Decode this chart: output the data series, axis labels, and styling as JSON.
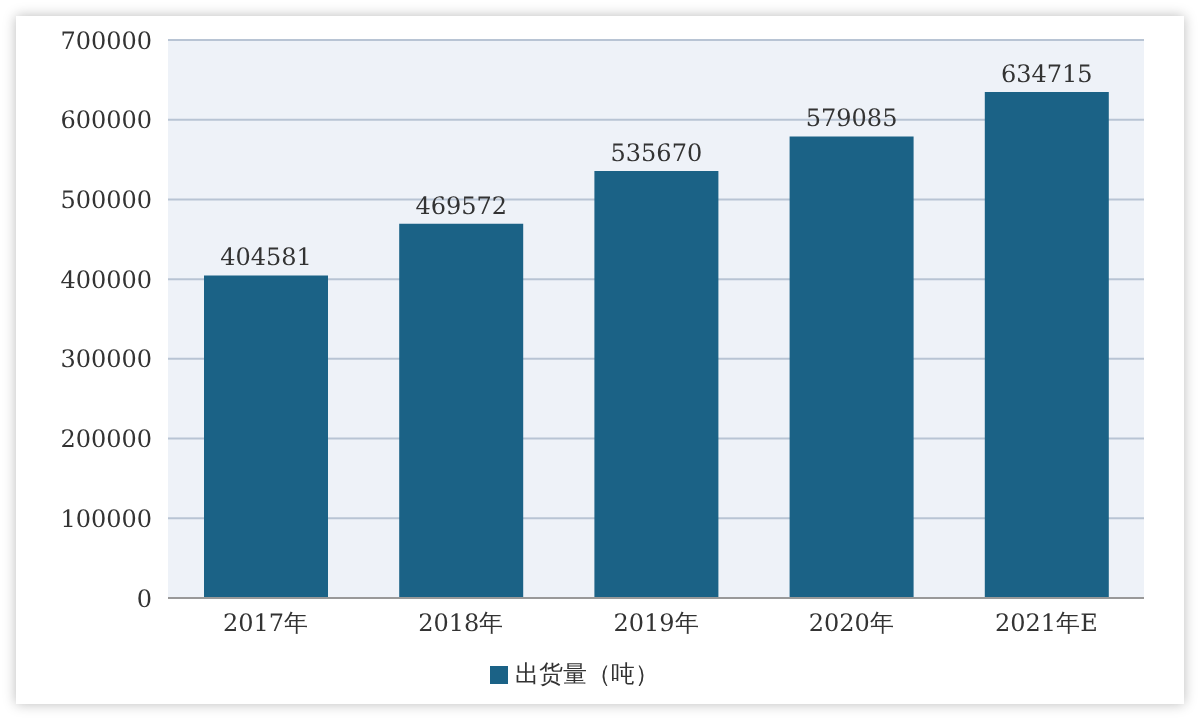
{
  "chart_data": {
    "type": "bar",
    "categories": [
      "2017年",
      "2018年",
      "2019年",
      "2020年",
      "2021年E"
    ],
    "series": [
      {
        "name": "出货量（吨）",
        "color": "#1b6286",
        "values": [
          404581,
          469572,
          535670,
          579085,
          634715
        ]
      }
    ],
    "ylim": [
      0,
      700000
    ],
    "yticks": [
      0,
      100000,
      200000,
      300000,
      400000,
      500000,
      600000,
      700000
    ],
    "grid": "y",
    "legend": "bottom",
    "data_labels": true
  }
}
